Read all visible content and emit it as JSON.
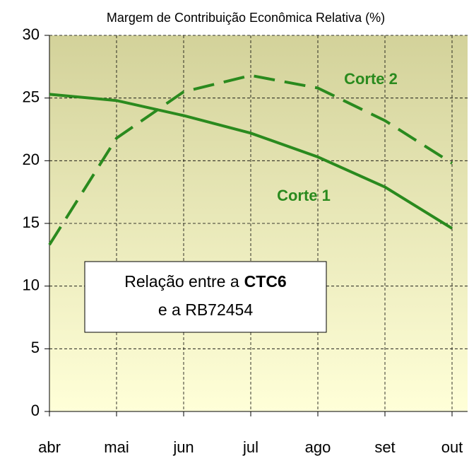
{
  "chart_data": {
    "type": "line",
    "title": "Margem de Contribuição Econômica Relativa (%)",
    "categories": [
      "abr",
      "mai",
      "jun",
      "jul",
      "ago",
      "set",
      "out"
    ],
    "series": [
      {
        "name": "Corte 1",
        "color": "#2a8a1e",
        "dash": false,
        "values": [
          25.3,
          24.8,
          23.6,
          22.2,
          20.3,
          17.9,
          14.6
        ]
      },
      {
        "name": "Corte 2",
        "color": "#2a8a1e",
        "dash": true,
        "values": [
          13.3,
          21.8,
          25.5,
          26.8,
          25.8,
          23.2,
          19.8
        ]
      }
    ],
    "ylim": [
      0,
      30
    ],
    "yticks": [
      0,
      5,
      10,
      15,
      20,
      25,
      30
    ],
    "grid": true,
    "annotation": [
      "Relação entre a",
      "CTC6",
      "e a RB72454"
    ]
  }
}
